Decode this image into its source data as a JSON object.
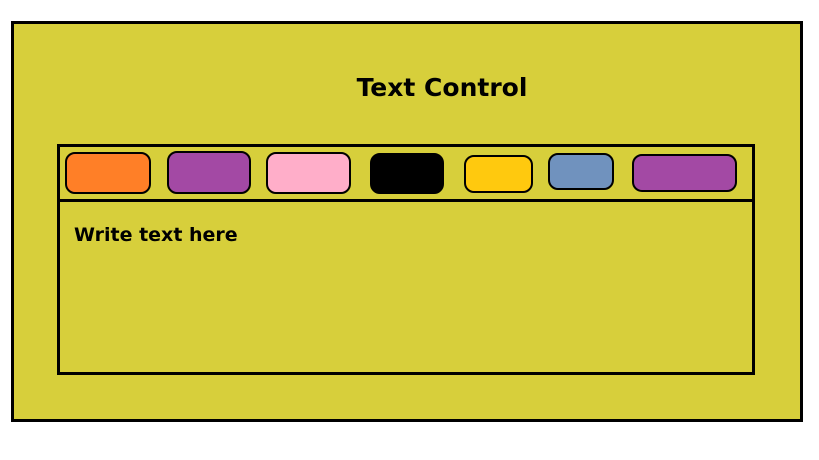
{
  "title": "Text Control",
  "editor": {
    "placeholder": "Write text here"
  },
  "color_buttons": [
    {
      "name": "orange",
      "color": "#ff7f27"
    },
    {
      "name": "purple",
      "color": "#a349a4"
    },
    {
      "name": "pink",
      "color": "#ffaec9"
    },
    {
      "name": "black",
      "color": "#000000"
    },
    {
      "name": "yellow",
      "color": "#ffc90e"
    },
    {
      "name": "blue",
      "color": "#7092be"
    },
    {
      "name": "purple-wide",
      "color": "#a349a4"
    }
  ]
}
